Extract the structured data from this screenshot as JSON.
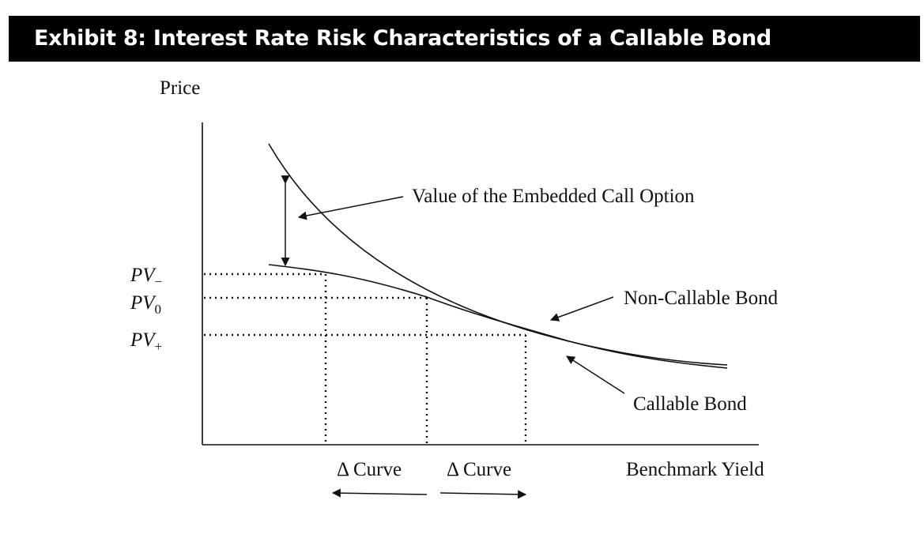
{
  "title": "Exhibit 8: Interest Rate Risk Characteristics of a Callable Bond",
  "axes": {
    "y_label": "Price",
    "x_label": "Benchmark Yield"
  },
  "price_levels": [
    {
      "base": "PV",
      "sub": "−"
    },
    {
      "base": "PV",
      "sub": "0"
    },
    {
      "base": "PV",
      "sub": "+"
    }
  ],
  "labels": {
    "call_option": "Value of the Embedded Call Option",
    "non_callable": "Non-Callable Bond",
    "callable": "Callable Bond",
    "curve_down": "Δ Curve",
    "curve_up": "Δ Curve"
  },
  "colors": {
    "title_bg": "#000000",
    "title_text": "#ffffff",
    "ink": "#111111"
  }
}
